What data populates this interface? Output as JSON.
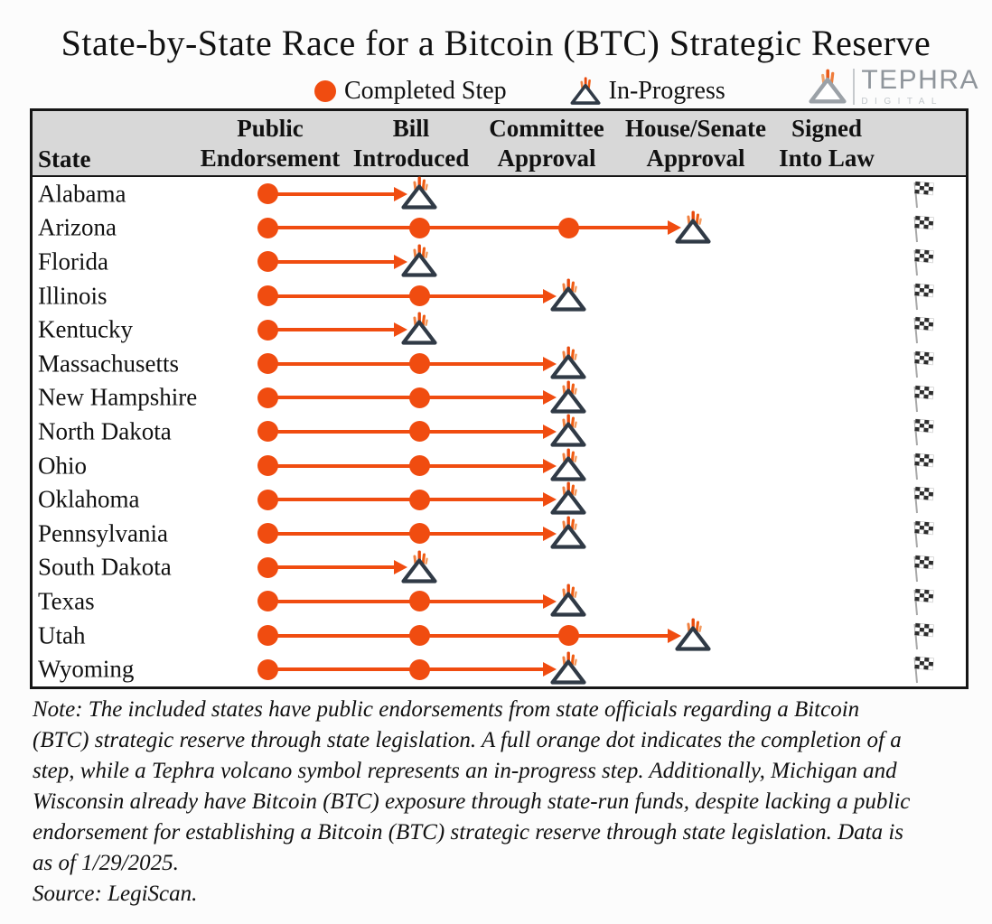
{
  "title": "State-by-State Race for a Bitcoin (BTC) Strategic Reserve",
  "legend": {
    "completed_label": "Completed Step",
    "in_progress_label": "In-Progress"
  },
  "logo": {
    "brand": "TEPHRA",
    "sub": "DIGITAL"
  },
  "table": {
    "state_header": "State",
    "columns": [
      {
        "line1": "Public",
        "line2": "Endorsement"
      },
      {
        "line1": "Bill",
        "line2": "Introduced"
      },
      {
        "line1": "Committee",
        "line2": "Approval"
      },
      {
        "line1": "House/Senate",
        "line2": "Approval"
      },
      {
        "line1": "Signed",
        "line2": "Into Law"
      }
    ]
  },
  "chart_data": {
    "type": "table",
    "title": "State-by-State Race for a Bitcoin (BTC) Strategic Reserve",
    "stages": [
      "Public Endorsement",
      "Bill Introduced",
      "Committee Approval",
      "House/Senate Approval",
      "Signed Into Law"
    ],
    "legend": {
      "completed": "Completed Step",
      "in_progress": "In-Progress"
    },
    "states": [
      {
        "name": "Alabama",
        "completed": [
          "Public Endorsement"
        ],
        "in_progress": "Bill Introduced"
      },
      {
        "name": "Arizona",
        "completed": [
          "Public Endorsement",
          "Bill Introduced",
          "Committee Approval"
        ],
        "in_progress": "House/Senate Approval"
      },
      {
        "name": "Florida",
        "completed": [
          "Public Endorsement"
        ],
        "in_progress": "Bill Introduced"
      },
      {
        "name": "Illinois",
        "completed": [
          "Public Endorsement",
          "Bill Introduced"
        ],
        "in_progress": "Committee Approval"
      },
      {
        "name": "Kentucky",
        "completed": [
          "Public Endorsement"
        ],
        "in_progress": "Bill Introduced"
      },
      {
        "name": "Massachusetts",
        "completed": [
          "Public Endorsement",
          "Bill Introduced"
        ],
        "in_progress": "Committee Approval"
      },
      {
        "name": "New Hampshire",
        "completed": [
          "Public Endorsement",
          "Bill Introduced"
        ],
        "in_progress": "Committee Approval"
      },
      {
        "name": "North Dakota",
        "completed": [
          "Public Endorsement",
          "Bill Introduced"
        ],
        "in_progress": "Committee Approval"
      },
      {
        "name": "Ohio",
        "completed": [
          "Public Endorsement",
          "Bill Introduced"
        ],
        "in_progress": "Committee Approval"
      },
      {
        "name": "Oklahoma",
        "completed": [
          "Public Endorsement",
          "Bill Introduced"
        ],
        "in_progress": "Committee Approval"
      },
      {
        "name": "Pennsylvania",
        "completed": [
          "Public Endorsement",
          "Bill Introduced"
        ],
        "in_progress": "Committee Approval"
      },
      {
        "name": "South Dakota",
        "completed": [
          "Public Endorsement"
        ],
        "in_progress": "Bill Introduced"
      },
      {
        "name": "Texas",
        "completed": [
          "Public Endorsement",
          "Bill Introduced"
        ],
        "in_progress": "Committee Approval"
      },
      {
        "name": "Utah",
        "completed": [
          "Public Endorsement",
          "Bill Introduced",
          "Committee Approval"
        ],
        "in_progress": "House/Senate Approval"
      },
      {
        "name": "Wyoming",
        "completed": [
          "Public Endorsement",
          "Bill Introduced"
        ],
        "in_progress": "Committee Approval"
      }
    ]
  },
  "note": {
    "lines": [
      "Note: The included states have public endorsements from state officials regarding a Bitcoin",
      "(BTC) strategic reserve through state legislation. A full orange dot indicates the completion of a",
      "step, while a Tephra volcano symbol represents an in-progress step. Additionally, Michigan and",
      "Wisconsin already have Bitcoin (BTC) exposure through state-run funds, despite lacking a public",
      "endorsement for establishing a Bitcoin (BTC) strategic reserve through state legislation. Data is",
      "as of 1/29/2025."
    ],
    "source": "Source: LegiScan."
  },
  "colors": {
    "accent_orange": "#f04c10",
    "volcano_dark": "#303a46",
    "header_bg": "#d8d8d8"
  }
}
